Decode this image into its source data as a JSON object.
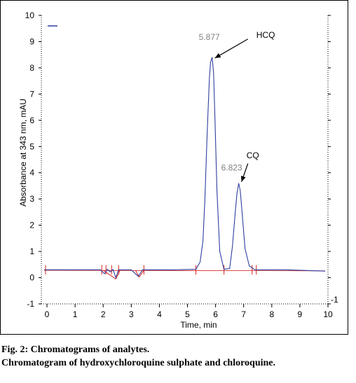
{
  "chart_data": {
    "type": "line",
    "xlabel": "Time, min",
    "ylabel": "Absorbance at 343 nm, mAU",
    "xlim": [
      -0.2,
      10
    ],
    "ylim": [
      -1,
      10
    ],
    "x_ticks": [
      0,
      1,
      2,
      3,
      4,
      5,
      6,
      7,
      8,
      9,
      10
    ],
    "y_ticks": [
      -1,
      0,
      1,
      2,
      3,
      4,
      5,
      6,
      7,
      8,
      9,
      10
    ],
    "extra_tick_labels": [
      "-1"
    ],
    "grid": false,
    "colors": {
      "trace": "#2f3f9f",
      "baseline": "#d62020",
      "arrow": "#000000",
      "peak_label": "#7f7f7f"
    },
    "series": [
      {
        "x": [
          -0.1,
          1.0,
          1.9,
          2.05,
          2.15,
          2.25,
          2.35,
          2.45,
          2.55,
          2.65,
          3.0,
          3.25,
          3.4,
          3.6,
          4.5,
          5.3,
          5.45,
          5.55,
          5.62,
          5.7,
          5.78,
          5.82,
          5.877,
          5.93,
          5.98,
          6.05,
          6.15,
          6.3,
          6.5,
          6.6,
          6.7,
          6.76,
          6.823,
          6.88,
          6.95,
          7.05,
          7.2,
          7.4,
          8.5,
          9.9
        ],
        "y": [
          0.3,
          0.3,
          0.3,
          0.15,
          0.32,
          0.22,
          0.31,
          0.0,
          0.3,
          0.3,
          0.3,
          0.05,
          0.3,
          0.3,
          0.3,
          0.32,
          0.6,
          1.4,
          3.0,
          5.5,
          7.6,
          8.2,
          8.4,
          7.8,
          6.0,
          3.3,
          1.0,
          0.32,
          0.35,
          1.2,
          2.5,
          3.2,
          3.6,
          3.3,
          2.4,
          1.1,
          0.45,
          0.3,
          0.3,
          0.25
        ]
      }
    ],
    "peaks": [
      {
        "retention_time": "5.877",
        "compound": "HCQ",
        "x": 5.877,
        "y": 8.4
      },
      {
        "retention_time": "6.823",
        "compound": "CQ",
        "x": 6.823,
        "y": 3.6
      }
    ]
  },
  "caption": {
    "line1": "Fig. 2: Chromatograms of analytes.",
    "line2": "Chromatogram of hydroxychloroquine sulphate and chloroquine."
  }
}
